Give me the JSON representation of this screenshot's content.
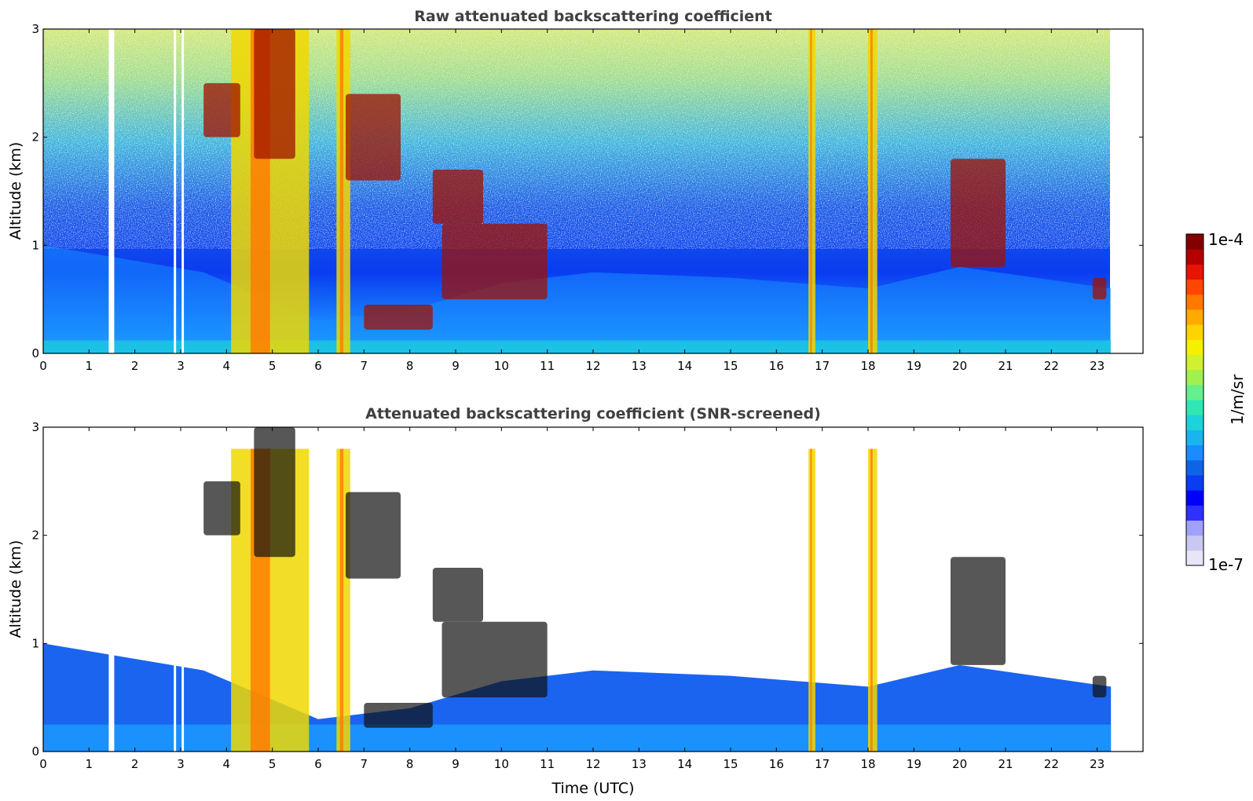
{
  "chart_data": [
    {
      "type": "heatmap",
      "title": "Raw attenuated backscattering coefficient",
      "xlabel": "",
      "ylabel": "Altitude (km)",
      "xlim": [
        0,
        24
      ],
      "ylim": [
        0,
        3
      ],
      "x_ticks": [
        "0",
        "1",
        "2",
        "3",
        "4",
        "5",
        "6",
        "7",
        "8",
        "9",
        "10",
        "11",
        "12",
        "13",
        "14",
        "15",
        "16",
        "17",
        "18",
        "19",
        "20",
        "21",
        "22",
        "23"
      ],
      "y_ticks": [
        "0",
        "1",
        "2",
        "3"
      ],
      "data_end_hour": 23.3,
      "missing_time_ranges_hours": [
        [
          1.43,
          1.55
        ],
        [
          2.85,
          2.9
        ],
        [
          3.02,
          3.07
        ]
      ],
      "features": {
        "boundary_layer_top_km": [
          [
            0,
            1.0
          ],
          [
            3.5,
            0.75
          ],
          [
            6,
            0.3
          ],
          [
            8,
            0.4
          ],
          [
            10,
            0.65
          ],
          [
            12,
            0.75
          ],
          [
            15,
            0.7
          ],
          [
            18,
            0.6
          ],
          [
            20,
            0.8
          ],
          [
            23.3,
            0.6
          ]
        ],
        "cloud_layers": [
          {
            "x": [
              3.5,
              4.3
            ],
            "y": [
              2.0,
              2.5
            ]
          },
          {
            "x": [
              4.6,
              5.5
            ],
            "y": [
              1.8,
              3.0
            ]
          },
          {
            "x": [
              6.6,
              7.8
            ],
            "y": [
              1.6,
              2.4
            ]
          },
          {
            "x": [
              7.0,
              8.5
            ],
            "y": [
              0.22,
              0.45
            ]
          },
          {
            "x": [
              8.5,
              9.6
            ],
            "y": [
              1.2,
              1.7
            ]
          },
          {
            "x": [
              8.7,
              11.0
            ],
            "y": [
              0.5,
              1.2
            ]
          },
          {
            "x": [
              19.8,
              21.0
            ],
            "y": [
              0.8,
              1.8
            ]
          },
          {
            "x": [
              22.9,
              23.2
            ],
            "y": [
              0.5,
              0.7
            ]
          }
        ],
        "precipitation_columns_hours": [
          [
            4.1,
            5.8
          ],
          [
            6.4,
            6.7
          ],
          [
            16.7,
            16.85
          ],
          [
            18.0,
            18.2
          ]
        ]
      }
    },
    {
      "type": "heatmap",
      "title": "Attenuated backscattering coefficient (SNR-screened)",
      "xlabel": "Time (UTC)",
      "ylabel": "Altitude (km)",
      "xlim": [
        0,
        24
      ],
      "ylim": [
        0,
        3
      ],
      "x_ticks": [
        "0",
        "1",
        "2",
        "3",
        "4",
        "5",
        "6",
        "7",
        "8",
        "9",
        "10",
        "11",
        "12",
        "13",
        "14",
        "15",
        "16",
        "17",
        "18",
        "19",
        "20",
        "21",
        "22",
        "23"
      ],
      "y_ticks": [
        "0",
        "1",
        "2",
        "3"
      ],
      "data_end_hour": 23.3,
      "screened_region": "signal below SNR threshold removed (white)"
    }
  ],
  "colorbar": {
    "label": "1/m/sr",
    "max_label": "1e-4",
    "min_label": "1e-7",
    "scale": "log",
    "range": [
      1e-07,
      0.0001
    ],
    "colors": [
      "#e6e6f8",
      "#c8c8f0",
      "#a0a0ff",
      "#3030ff",
      "#0000ff",
      "#0a3cf0",
      "#0f64e6",
      "#1a8cff",
      "#1ab4f0",
      "#1ed2dc",
      "#32e6b4",
      "#64f08c",
      "#a0f050",
      "#d2f032",
      "#f5f000",
      "#ffd200",
      "#ffaa00",
      "#ff7800",
      "#ff4600",
      "#e61400",
      "#b40000",
      "#820000"
    ]
  }
}
